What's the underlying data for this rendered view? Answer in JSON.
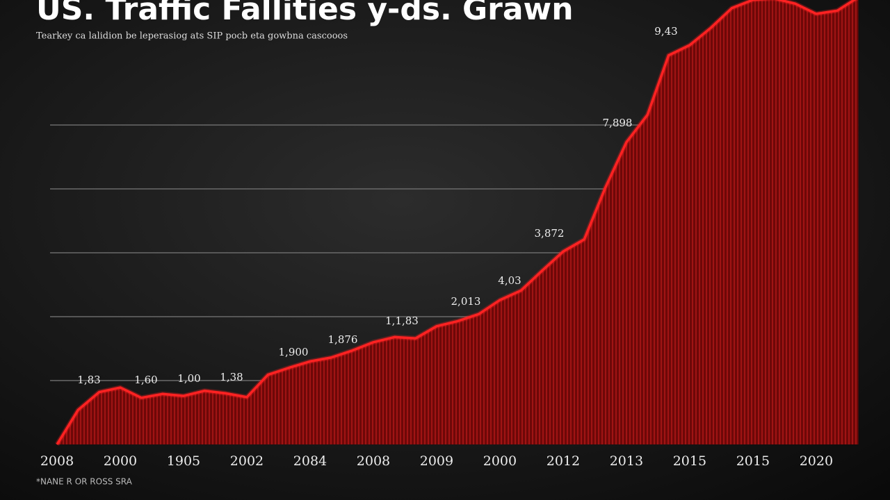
{
  "chart_data": {
    "type": "area",
    "title": "US. Traffic Fallities y-ds. Grawn",
    "subtitle": "Tearkey ca lalidion be leperasiog ats SIP pocb eta gowbna cascooos",
    "footnote": "*NANE R OR ROSS SRA",
    "categories": [
      "2008",
      null,
      null,
      "2000",
      null,
      null,
      "1905",
      null,
      null,
      "2002",
      null,
      null,
      "2084",
      null,
      null,
      "2008",
      null,
      null,
      "2009",
      null,
      null,
      "2000",
      null,
      null,
      "2012",
      null,
      null,
      "2013",
      null,
      null,
      "2015",
      null,
      null,
      "2015",
      null,
      null,
      "2020",
      null,
      null
    ],
    "values": [
      0.0,
      0.54,
      0.82,
      0.89,
      0.73,
      0.79,
      0.76,
      0.84,
      0.8,
      0.74,
      1.09,
      1.2,
      1.3,
      1.36,
      1.47,
      1.6,
      1.68,
      1.66,
      1.85,
      1.93,
      2.04,
      2.26,
      2.41,
      2.72,
      3.02,
      3.21,
      4.02,
      4.73,
      5.16,
      6.09,
      6.25,
      6.52,
      6.83,
      6.96,
      6.98,
      6.9,
      6.74,
      6.79,
      7.0
    ],
    "annotations": [
      "1,83",
      "1,60",
      "1,00",
      "1,38",
      "1,900",
      "1,876",
      "1,1,83",
      "2,013",
      "4,03",
      "3,872",
      "7,898",
      "9,43"
    ],
    "color": "#7a0a0a",
    "line_color": "#ff2222",
    "ylim": [
      0,
      7
    ],
    "yticks": [
      1,
      2,
      3,
      4,
      5
    ],
    "show_ytick_labels": false,
    "grid": true
  }
}
